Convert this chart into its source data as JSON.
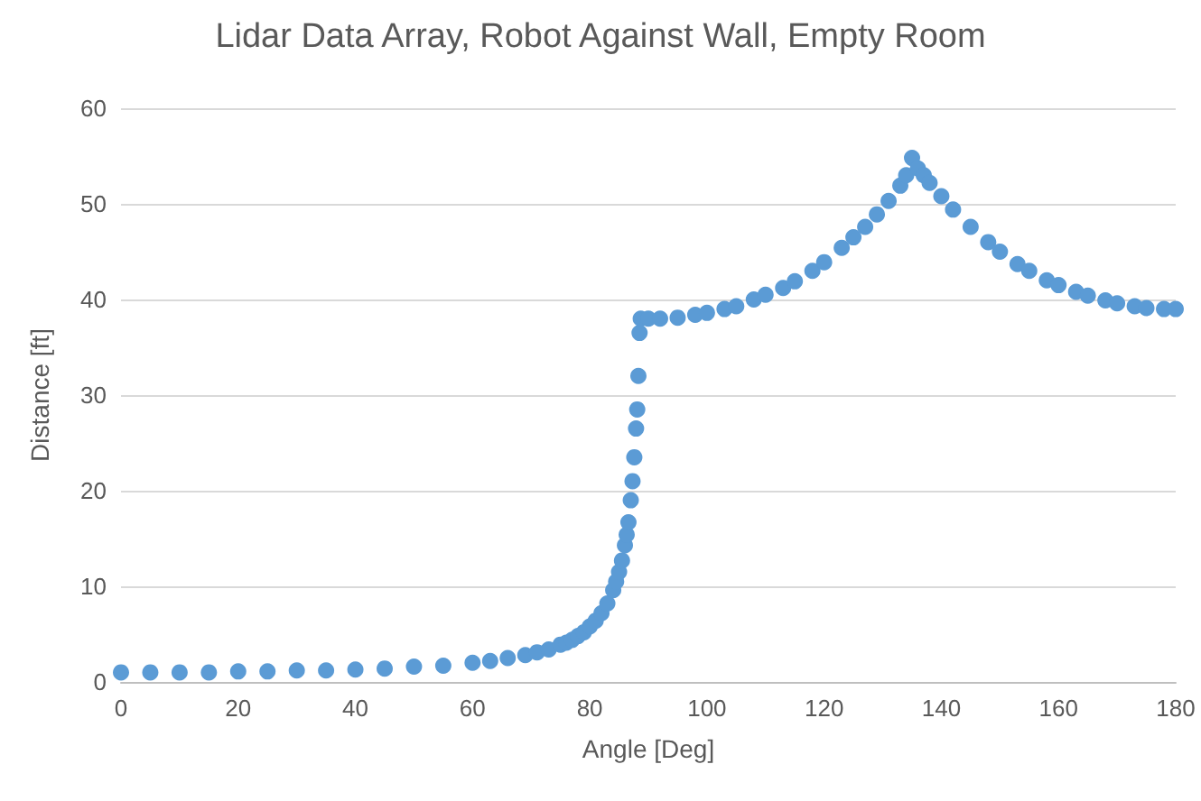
{
  "chart_data": {
    "type": "scatter",
    "title": "Lidar Data Array, Robot Against Wall, Empty Room",
    "xlabel": "Angle [Deg]",
    "ylabel": "Distance [ft]",
    "xlim": [
      0,
      180
    ],
    "xticks": [
      0,
      20,
      40,
      60,
      80,
      100,
      120,
      140,
      160,
      180
    ],
    "ylim": [
      0,
      60
    ],
    "yticks": [
      0,
      10,
      20,
      30,
      40,
      50,
      60
    ],
    "grid": "y",
    "marker": "circle",
    "legend": false,
    "series": [
      {
        "color": "#5b9bd5",
        "x": [
          0,
          5,
          10,
          15,
          20,
          25,
          30,
          35,
          40,
          45,
          50,
          55,
          60,
          63,
          66,
          69,
          71,
          73,
          75,
          76,
          77,
          78,
          79,
          80,
          81,
          82,
          83,
          84,
          84.5,
          85,
          85.5,
          86,
          86.3,
          86.6,
          87,
          87.3,
          87.6,
          87.9,
          88.1,
          88.3,
          88.5,
          88.7,
          90,
          92,
          95,
          98,
          100,
          103,
          105,
          108,
          110,
          113,
          115,
          118,
          120,
          123,
          125,
          127,
          129,
          131,
          133,
          134,
          135,
          136,
          137,
          138,
          140,
          142,
          145,
          148,
          150,
          153,
          155,
          158,
          160,
          163,
          165,
          168,
          170,
          173,
          175,
          178,
          180
        ],
        "values": [
          1.0,
          1.0,
          1.0,
          1.0,
          1.1,
          1.1,
          1.2,
          1.2,
          1.3,
          1.4,
          1.6,
          1.7,
          2.0,
          2.2,
          2.5,
          2.8,
          3.1,
          3.4,
          3.9,
          4.1,
          4.4,
          4.8,
          5.2,
          5.8,
          6.4,
          7.2,
          8.2,
          9.6,
          10.5,
          11.5,
          12.7,
          14.3,
          15.4,
          16.7,
          19.0,
          21.0,
          23.5,
          26.5,
          28.5,
          32.0,
          36.5,
          38.0,
          38.0,
          38.0,
          38.1,
          38.4,
          38.6,
          39.0,
          39.3,
          40.0,
          40.5,
          41.2,
          41.9,
          43.0,
          43.9,
          45.4,
          46.5,
          47.6,
          48.9,
          50.3,
          51.9,
          53.0,
          54.8,
          53.7,
          53.0,
          52.2,
          50.8,
          49.4,
          47.6,
          46.0,
          45.0,
          43.7,
          43.0,
          42.0,
          41.5,
          40.8,
          40.4,
          39.9,
          39.6,
          39.3,
          39.1,
          39.0,
          39.0
        ]
      }
    ]
  }
}
